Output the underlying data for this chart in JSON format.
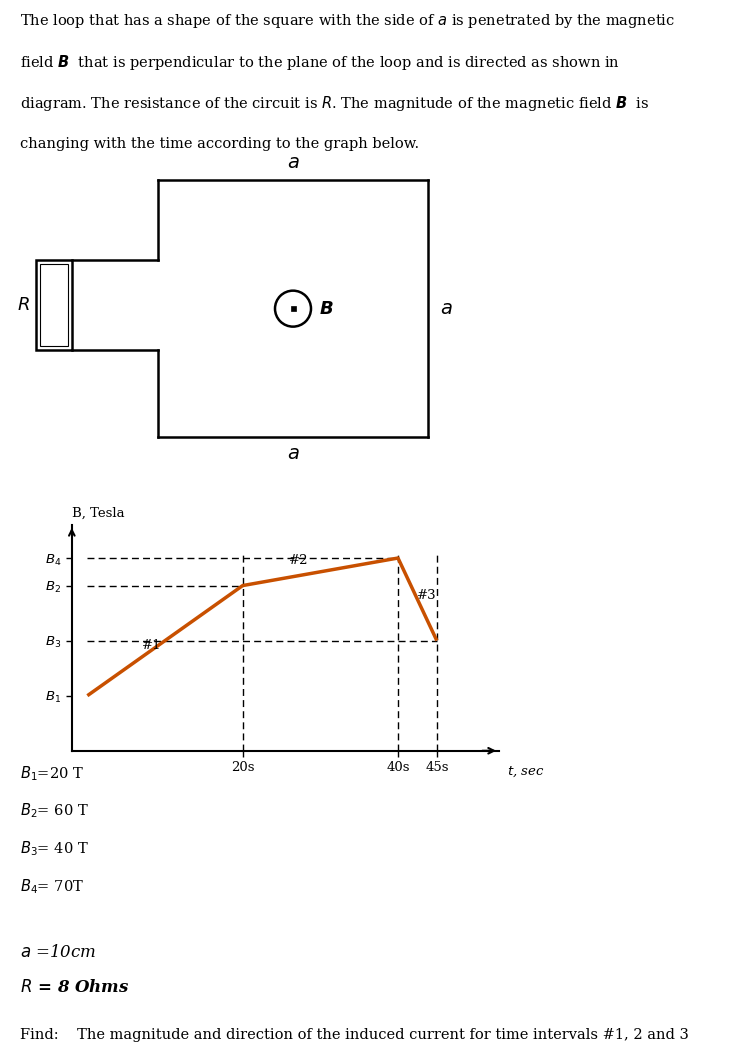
{
  "text_lines": [
    "The loop that has a shape of the square with the side of $\\mathit{a}$ is penetrated by the magnetic",
    "field $\\boldsymbol{B}$  that is perpendicular to the plane of the loop and is directed as shown in",
    "diagram. The resistance of the circuit is $\\mathit{R}$. The magnitude of the magnetic field $\\boldsymbol{B}$  is",
    "changing with the time according to the graph below."
  ],
  "graph": {
    "t_points": [
      0,
      20,
      40,
      45
    ],
    "B_points": [
      20,
      60,
      70,
      40
    ],
    "B1": 20,
    "B2": 60,
    "B3": 40,
    "B4": 70,
    "line_color": "#C85000",
    "dash_color": "#000000"
  },
  "given_lines": [
    "$B_1$=20 T",
    "$B_2$= 60 T",
    "$B_3$= 40 T",
    "$B_4$= 70T"
  ],
  "given_a": "$\\mathit{a}$ =10cm",
  "given_R": "$\\mathit{R}$ = 8 Ohms",
  "find_text": "Find:    The magnitude and direction of the induced current for time intervals #1, 2 and 3",
  "bg_color": "#ffffff"
}
